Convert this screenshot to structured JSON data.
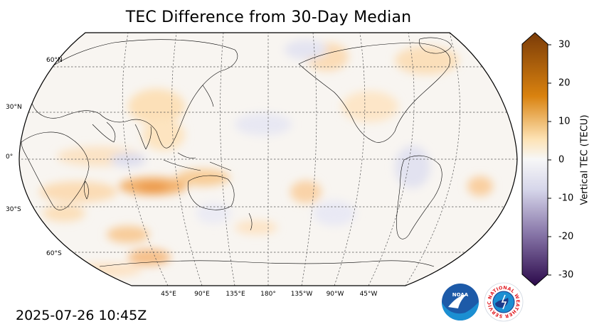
{
  "title": "TEC Difference from 30-Day Median",
  "timestamp": "2025-07-26 10:45Z",
  "lat_labels": [
    "60°N",
    "30°N",
    "0°",
    "30°S",
    "60°S"
  ],
  "lon_labels": [
    "45°E",
    "90°E",
    "135°E",
    "180°",
    "135°W",
    "90°W",
    "45°W"
  ],
  "colorbar": {
    "label": "Vertical TEC (TECU)",
    "ticks": [
      "30",
      "20",
      "10",
      "0",
      "-10",
      "-20",
      "-30"
    ],
    "range": [
      -30,
      30
    ],
    "colors": {
      "max": "#7a3b08",
      "high": "#d9820f",
      "low_positive": "#fde2b4",
      "zero": "#f7f7f7",
      "low_negative": "#d6d6ea",
      "mid_negative": "#8573a6",
      "min": "#2c0a4b"
    }
  },
  "logos": {
    "noaa": {
      "text": "NOAA",
      "icon": "noaa-logo-icon",
      "color": "#1d5aa8"
    },
    "nws": {
      "text": "NATIONAL WEATHER SERVICE",
      "icon": "nws-logo-icon",
      "color": "#e21d24"
    }
  }
}
